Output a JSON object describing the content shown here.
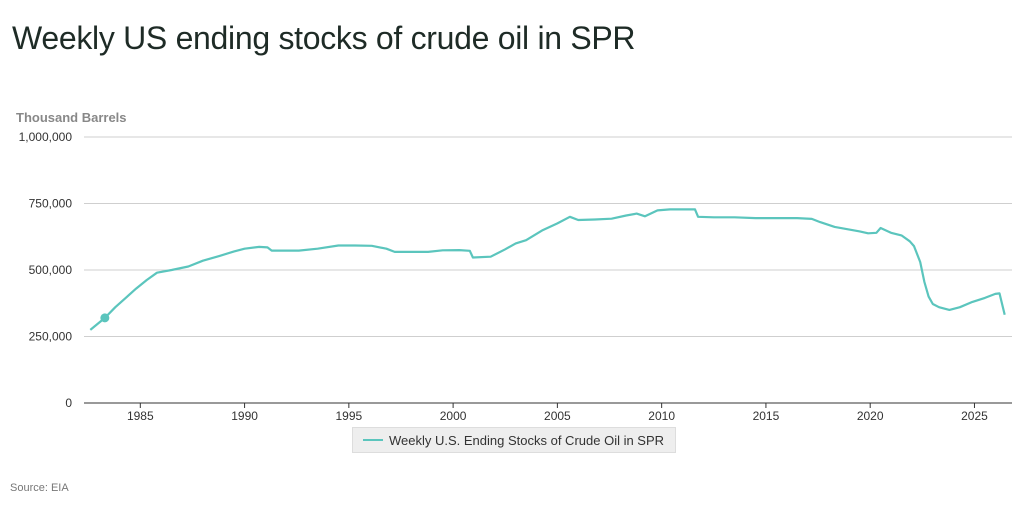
{
  "title": "Weekly US ending stocks of crude oil in SPR",
  "source": "Source: EIA",
  "chart_data": {
    "type": "line",
    "title": "Weekly US ending stocks of crude oil in SPR",
    "ylabel": "Thousand Barrels",
    "xlabel": "",
    "ylim": [
      0,
      1000000
    ],
    "xlim": [
      1982.3,
      2026.8
    ],
    "yticks": [
      0,
      250000,
      500000,
      750000,
      1000000
    ],
    "ytick_labels": [
      "0",
      "250,000",
      "500,000",
      "750,000",
      "1,000,000"
    ],
    "xticks": [
      1985,
      1990,
      1995,
      2000,
      2005,
      2010,
      2015,
      2020,
      2025
    ],
    "xtick_labels": [
      "1985",
      "1990",
      "1995",
      "2000",
      "2005",
      "2010",
      "2015",
      "2020",
      "2025"
    ],
    "grid": true,
    "legend": "bottom-center",
    "color": "#5bc5bd",
    "series": [
      {
        "name": "Weekly U.S. Ending Stocks of Crude Oil in SPR",
        "x": [
          1982.6,
          1983.3,
          1983.8,
          1984.3,
          1984.8,
          1985.3,
          1985.8,
          1986.5,
          1987.3,
          1988.0,
          1988.8,
          1989.5,
          1990.0,
          1990.7,
          1991.1,
          1991.3,
          1992.0,
          1992.6,
          1993.5,
          1994.5,
          1995.3,
          1996.1,
          1996.8,
          1997.2,
          1998.0,
          1998.8,
          1999.5,
          2000.3,
          2000.8,
          2000.95,
          2001.8,
          2002.5,
          2003.0,
          2003.5,
          2004.3,
          2005.0,
          2005.6,
          2006.0,
          2006.8,
          2007.6,
          2008.3,
          2008.8,
          2009.2,
          2009.8,
          2010.4,
          2011.0,
          2011.6,
          2011.75,
          2012.5,
          2013.5,
          2014.5,
          2015.5,
          2016.5,
          2017.2,
          2017.6,
          2018.3,
          2018.8,
          2019.5,
          2019.9,
          2020.3,
          2020.5,
          2021.0,
          2021.5,
          2021.9,
          2022.1,
          2022.4,
          2022.6,
          2022.8,
          2023.0,
          2023.3,
          2023.8,
          2024.3,
          2024.9,
          2025.5,
          2026.0,
          2026.2,
          2026.45
        ],
        "y": [
          275000,
          320000,
          360000,
          395000,
          430000,
          462000,
          490000,
          500000,
          513000,
          535000,
          553000,
          570000,
          580000,
          587000,
          585000,
          573000,
          573000,
          573000,
          580000,
          592000,
          592000,
          591000,
          580000,
          568000,
          568000,
          568000,
          574000,
          575000,
          572000,
          547000,
          550000,
          578000,
          600000,
          612000,
          650000,
          675000,
          700000,
          688000,
          690000,
          693000,
          705000,
          712000,
          702000,
          724000,
          728000,
          728000,
          728000,
          700000,
          698000,
          698000,
          695000,
          695000,
          695000,
          692000,
          680000,
          662000,
          655000,
          645000,
          638000,
          640000,
          658000,
          640000,
          630000,
          608000,
          590000,
          530000,
          455000,
          400000,
          372000,
          360000,
          350000,
          360000,
          380000,
          395000,
          410000,
          412000,
          332000
        ]
      }
    ],
    "highlight_point": {
      "x": 1983.3,
      "y": 320000
    }
  }
}
